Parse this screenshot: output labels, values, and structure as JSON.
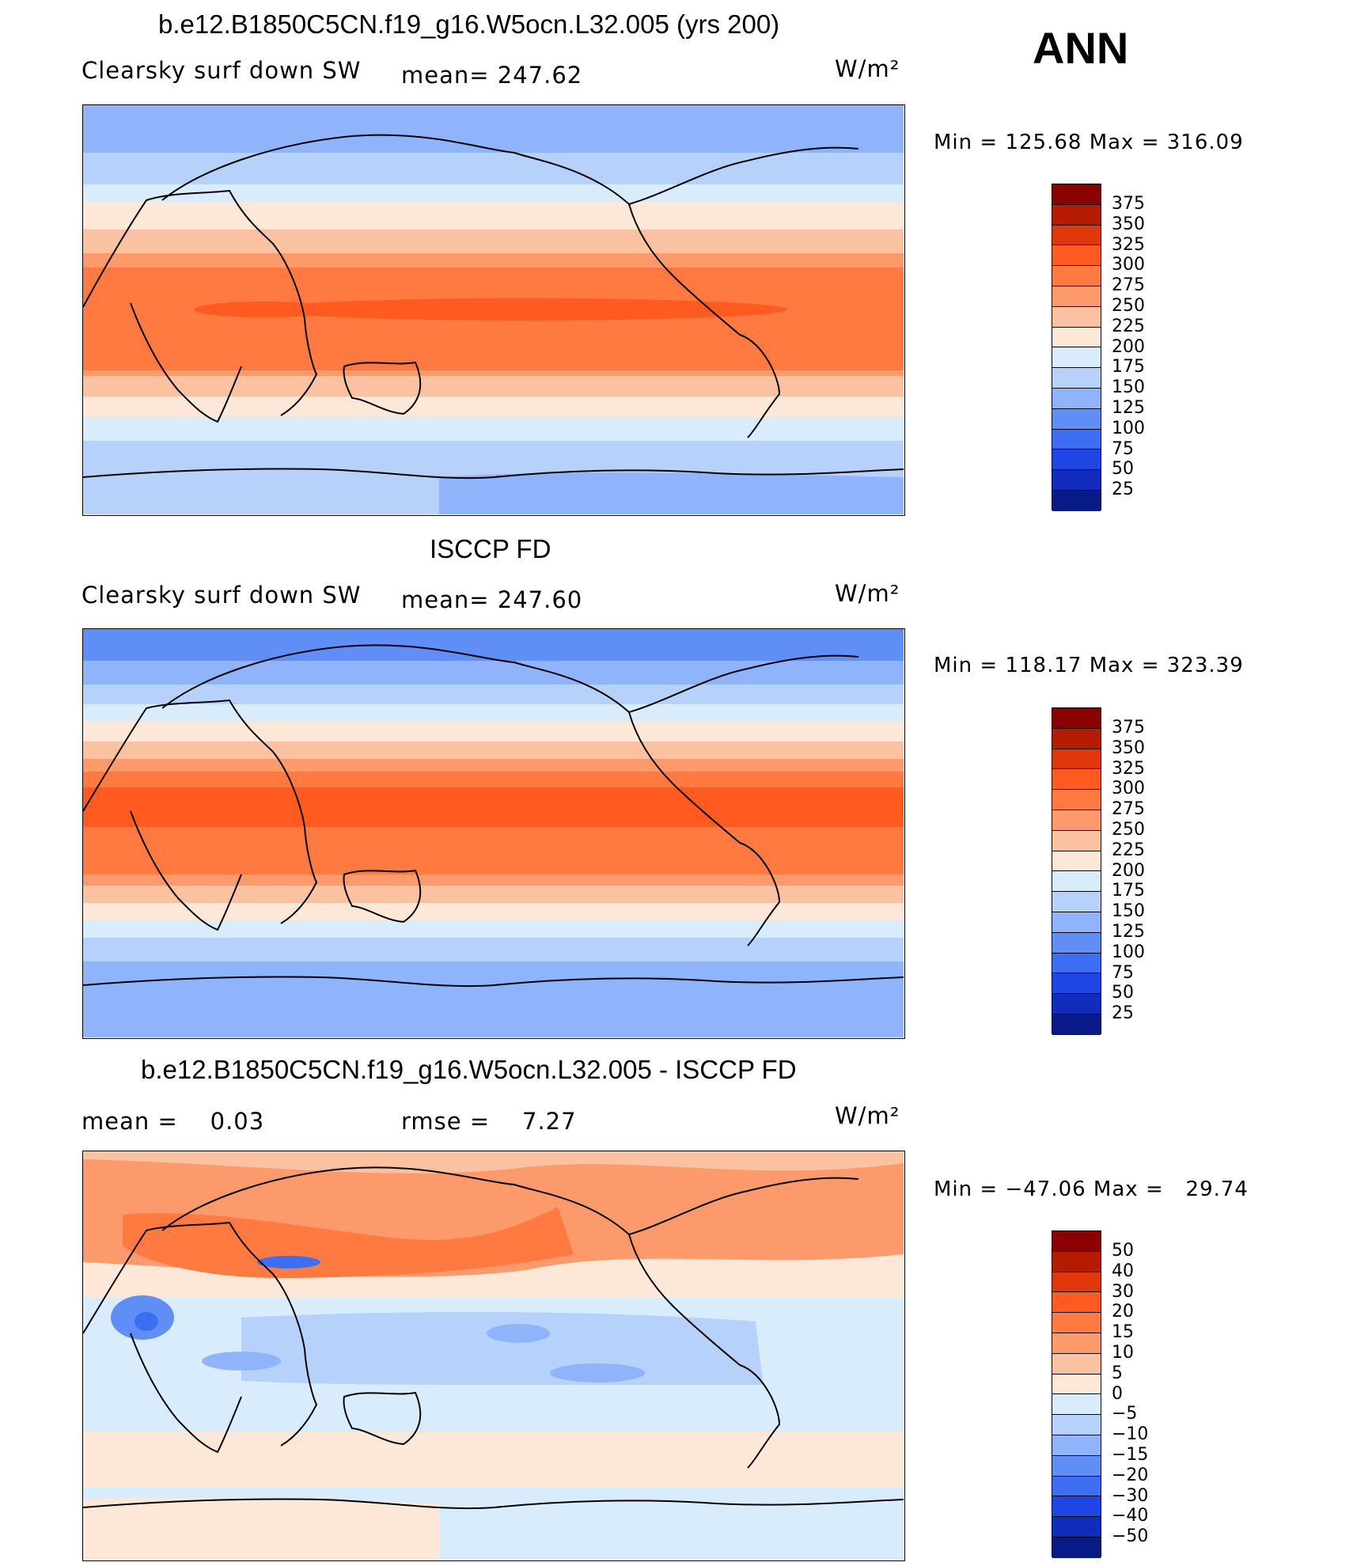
{
  "season": "ANN",
  "units": "W/m2",
  "panels": [
    {
      "title": "b.e12.B1850C5CN.f19_g16.W5ocn.L32.005 (yrs 200)",
      "left_label": "Clearsky surf down SW",
      "stat_label": "mean= 247.62",
      "units": "W/m²",
      "minmax": "Min = 125.68 Max = 316.09",
      "kind": "field"
    },
    {
      "title": "ISCCP FD",
      "left_label": "Clearsky surf down SW",
      "stat_label": "mean= 247.60",
      "units": "W/m²",
      "minmax": "Min = 118.17 Max = 323.39",
      "kind": "field"
    },
    {
      "title": "b.e12.B1850C5CN.f19_g16.W5ocn.L32.005 - ISCCP FD",
      "left_label": "mean =    0.03",
      "stat_label": "rmse =    7.27",
      "units": "W/m²",
      "minmax": "Min = −47.06 Max =   29.74",
      "kind": "diff"
    }
  ],
  "colorbars": {
    "field": {
      "levels": [
        "375",
        "350",
        "325",
        "300",
        "275",
        "250",
        "225",
        "200",
        "175",
        "150",
        "125",
        "100",
        "75",
        "50",
        "25"
      ],
      "colors": [
        "#8b0000",
        "#b51b00",
        "#e0380a",
        "#ff5a1f",
        "#ff7a40",
        "#fd9a6c",
        "#fbc2a2",
        "#fde7d6",
        "#d8ecfc",
        "#b6d2fb",
        "#8fb4fb",
        "#5f8ff6",
        "#3b6ef2",
        "#1e46e4",
        "#0f2cbc",
        "#071a88"
      ]
    },
    "diff": {
      "levels": [
        "50",
        "40",
        "30",
        "20",
        "15",
        "10",
        "5",
        "0",
        "−5",
        "−10",
        "−15",
        "−20",
        "−30",
        "−40",
        "−50"
      ],
      "colors": [
        "#8b0000",
        "#b51b00",
        "#e0380a",
        "#ff5a1f",
        "#ff7a40",
        "#fd9a6c",
        "#fbc2a2",
        "#fde7d6",
        "#d8ecfc",
        "#b6d2fb",
        "#8fb4fb",
        "#5f8ff6",
        "#3b6ef2",
        "#1e46e4",
        "#0f2cbc",
        "#071a88"
      ]
    }
  }
}
